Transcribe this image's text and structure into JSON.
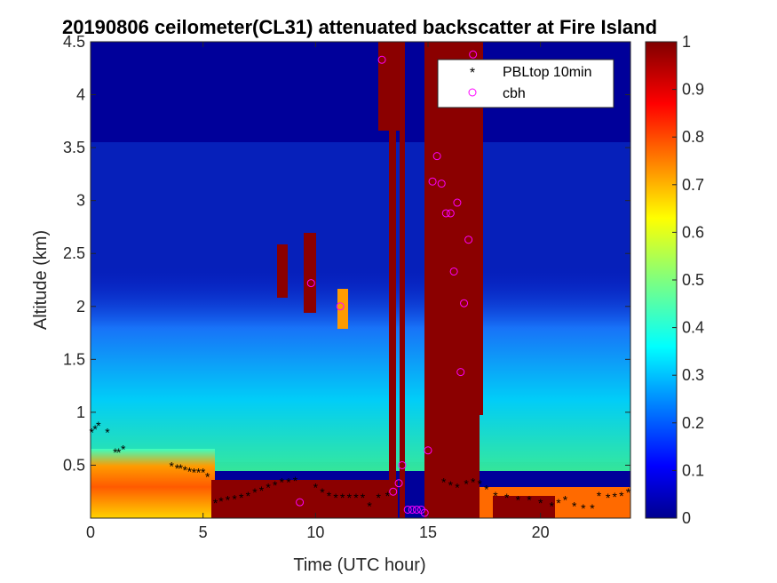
{
  "chart_data": {
    "type": "heatmap",
    "title": "20190806 ceilometer(CL31) attenuated backscatter at Fire Island",
    "xlabel": "Time (UTC hour)",
    "ylabel": "Altitude (km)",
    "xlim": [
      0,
      24
    ],
    "ylim": [
      0,
      4.5
    ],
    "xticks": [
      "0",
      "5",
      "10",
      "15",
      "20"
    ],
    "xtick_values": [
      0,
      5,
      10,
      15,
      20
    ],
    "yticks": [
      "0.5",
      "1",
      "1.5",
      "2",
      "2.5",
      "3",
      "3.5",
      "4",
      "4.5"
    ],
    "ytick_values": [
      0.5,
      1,
      1.5,
      2,
      2.5,
      3,
      3.5,
      4,
      4.5
    ],
    "colorbar": {
      "ticks": [
        "0",
        "0.1",
        "0.2",
        "0.3",
        "0.4",
        "0.5",
        "0.6",
        "0.7",
        "0.8",
        "0.9",
        "1"
      ],
      "tick_values": [
        0,
        0.1,
        0.2,
        0.3,
        0.4,
        0.5,
        0.6,
        0.7,
        0.8,
        0.9,
        1
      ],
      "range": [
        0,
        1
      ],
      "colormap": "jet"
    },
    "legend": {
      "placement": "top-right",
      "entries": [
        {
          "label": "PBLtop 10min",
          "marker": "*",
          "color": "#000000"
        },
        {
          "label": "cbh",
          "marker": "o",
          "color": "#ff00ff"
        }
      ]
    },
    "series": [
      {
        "name": "PBLtop 10min",
        "marker": "*",
        "color": "#000000",
        "x": [
          0.05,
          0.2,
          0.35,
          0.75,
          1.1,
          1.25,
          1.45,
          3.6,
          3.85,
          4.0,
          4.2,
          4.4,
          4.6,
          4.8,
          5.0,
          5.2,
          5.55,
          5.8,
          6.1,
          6.4,
          6.7,
          7.0,
          7.3,
          7.6,
          7.9,
          8.2,
          8.5,
          8.8,
          9.1,
          10.0,
          10.3,
          10.6,
          10.9,
          11.2,
          11.5,
          11.8,
          12.1,
          12.4,
          12.8,
          13.2,
          15.7,
          16.0,
          16.3,
          16.7,
          17.0,
          17.3,
          17.6,
          18.0,
          18.5,
          19.0,
          19.5,
          20.0,
          20.5,
          20.8,
          21.1,
          21.5,
          21.9,
          22.3,
          22.6,
          23.0,
          23.3,
          23.6,
          23.9
        ],
        "y": [
          0.82,
          0.85,
          0.88,
          0.82,
          0.63,
          0.63,
          0.66,
          0.5,
          0.48,
          0.48,
          0.46,
          0.45,
          0.44,
          0.44,
          0.44,
          0.4,
          0.15,
          0.17,
          0.18,
          0.19,
          0.2,
          0.22,
          0.25,
          0.27,
          0.3,
          0.32,
          0.35,
          0.35,
          0.36,
          0.3,
          0.25,
          0.22,
          0.2,
          0.2,
          0.2,
          0.2,
          0.2,
          0.12,
          0.2,
          0.22,
          0.35,
          0.32,
          0.3,
          0.33,
          0.35,
          0.33,
          0.28,
          0.22,
          0.2,
          0.18,
          0.18,
          0.15,
          0.12,
          0.15,
          0.18,
          0.12,
          0.1,
          0.1,
          0.22,
          0.2,
          0.21,
          0.22,
          0.25
        ]
      },
      {
        "name": "cbh",
        "marker": "o",
        "color": "#ff00ff",
        "x": [
          9.3,
          9.8,
          11.1,
          12.95,
          13.45,
          13.7,
          13.85,
          14.1,
          14.3,
          14.5,
          14.7,
          14.85,
          15.0,
          15.2,
          15.4,
          15.6,
          15.8,
          16.0,
          16.15,
          16.3,
          16.45,
          16.6,
          16.8,
          17.0
        ],
        "y": [
          0.15,
          2.22,
          2.0,
          4.33,
          0.25,
          0.33,
          0.5,
          0.08,
          0.08,
          0.08,
          0.08,
          0.05,
          0.64,
          3.18,
          3.42,
          3.16,
          2.88,
          2.88,
          2.33,
          2.98,
          1.38,
          2.03,
          2.63,
          4.38
        ]
      }
    ],
    "heatmap_note_values": {
      "surface_layer": "0 to 0.4 km strongly elevated backscatter (0.7-1) across 0-6 UTC",
      "cloud_columns": "saturated (1.0) columns near 8-11 UTC, 13.3-14 UTC, 14.8-17.3 UTC"
    }
  }
}
